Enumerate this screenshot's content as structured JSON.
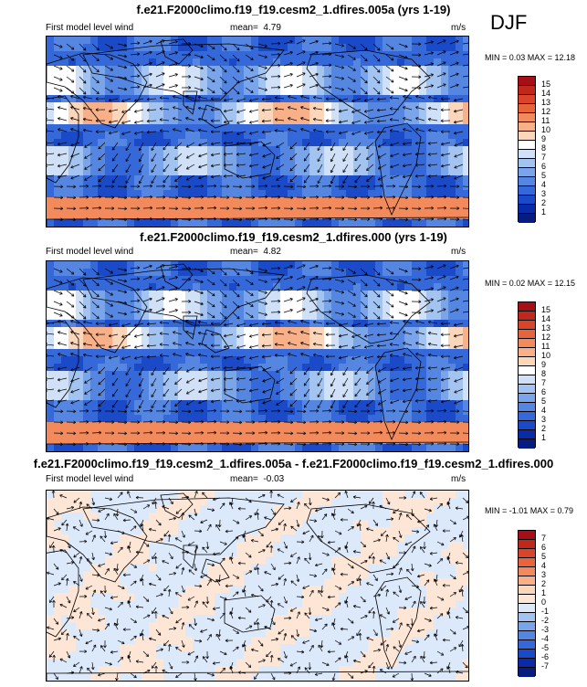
{
  "season": "DJF",
  "panels": [
    {
      "title": "f.e21.F2000climo.f19_f19.cesm2_1.dfires.005a (yrs 1-19)",
      "subtitle_left": "First model level wind",
      "mean_label": "mean=",
      "mean": "4.79",
      "units": "m/s",
      "minmax": "MIN =  0.03 MAX =  12.18",
      "levels": [
        "15",
        "14",
        "13",
        "12",
        "11",
        "10",
        "9",
        "8",
        "7",
        "6",
        "5",
        "4",
        "3",
        "2",
        "1"
      ],
      "colors": [
        "#a50f15",
        "#c0281c",
        "#d8452a",
        "#e8643d",
        "#f28a5c",
        "#f8b088",
        "#fbd6bb",
        "#ffffff",
        "#cfe0f7",
        "#a3c3f0",
        "#7ba5ea",
        "#5587e2",
        "#3568d8",
        "#1b4ac8",
        "#0a2ba8",
        "#061c80"
      ]
    },
    {
      "title": "f.e21.F2000climo.f19_f19.cesm2_1.dfires.000 (yrs 1-19)",
      "subtitle_left": "First model level wind",
      "mean_label": "mean=",
      "mean": "4.82",
      "units": "m/s",
      "minmax": "MIN =  0.02 MAX =  12.15",
      "levels": [
        "15",
        "14",
        "13",
        "12",
        "11",
        "10",
        "9",
        "8",
        "7",
        "6",
        "5",
        "4",
        "3",
        "2",
        "1"
      ],
      "colors": [
        "#a50f15",
        "#c0281c",
        "#d8452a",
        "#e8643d",
        "#f28a5c",
        "#f8b088",
        "#fbd6bb",
        "#ffffff",
        "#cfe0f7",
        "#a3c3f0",
        "#7ba5ea",
        "#5587e2",
        "#3568d8",
        "#1b4ac8",
        "#0a2ba8",
        "#061c80"
      ]
    },
    {
      "title": "f.e21.F2000climo.f19_f19.cesm2_1.dfires.005a - f.e21.F2000climo.f19_f19.cesm2_1.dfires.000",
      "subtitle_left": "First model level wind",
      "mean_label": "mean=",
      "mean": "-0.03",
      "units": "m/s",
      "minmax": "MIN = -1.01 MAX =  0.79",
      "levels": [
        "7",
        "6",
        "5",
        "4",
        "3",
        "2",
        "1",
        "0",
        "-1",
        "-2",
        "-3",
        "-4",
        "-5",
        "-6",
        "-7"
      ],
      "colors": [
        "#a50f15",
        "#c0281c",
        "#d8452a",
        "#e8643d",
        "#f28a5c",
        "#f8b088",
        "#fbd6bb",
        "#fde6d6",
        "#dbe9fb",
        "#a3c3f0",
        "#7ba5ea",
        "#5587e2",
        "#3568d8",
        "#1b4ac8",
        "#0a2ba8",
        "#061c80"
      ]
    }
  ]
}
